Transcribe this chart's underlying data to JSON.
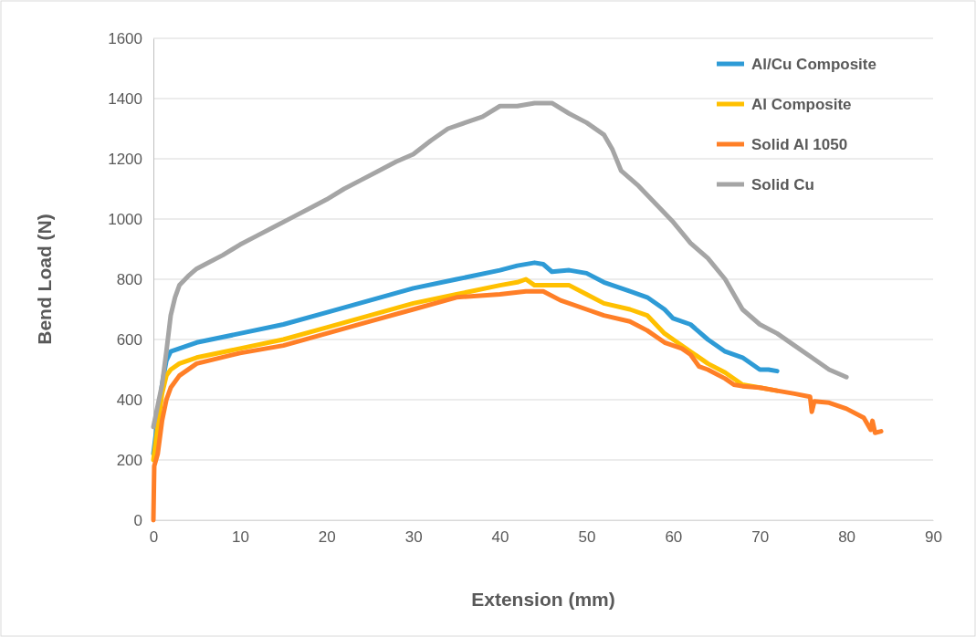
{
  "chart_data": {
    "type": "line",
    "xlabel": "Extension (mm)",
    "ylabel": "Bend Load (N)",
    "xlim": [
      0,
      90
    ],
    "xticks": [
      0,
      10,
      20,
      30,
      40,
      50,
      60,
      70,
      80,
      90
    ],
    "ylim": [
      0,
      1600
    ],
    "yticks": [
      0,
      200,
      400,
      600,
      800,
      1000,
      1200,
      1400,
      1600
    ],
    "grid": "y",
    "legend": "top right",
    "marker": "none",
    "line_style": "solid",
    "series": [
      {
        "name": "Al/Cu Composite",
        "color": "#2e9bd6",
        "x": [
          0,
          0.5,
          1,
          1.5,
          2,
          3,
          5,
          10,
          15,
          20,
          25,
          30,
          35,
          40,
          42,
          44,
          45,
          46,
          48,
          50,
          52,
          55,
          57,
          59,
          60,
          62,
          64,
          66,
          68,
          70,
          71,
          72
        ],
        "values": [
          220,
          null,
          450,
          530,
          560,
          570,
          590,
          620,
          650,
          690,
          730,
          770,
          800,
          830,
          845,
          855,
          850,
          825,
          830,
          820,
          790,
          760,
          740,
          700,
          670,
          650,
          600,
          560,
          540,
          500,
          500,
          495
        ]
      },
      {
        "name": "Al Composite",
        "color": "#ffc000",
        "x": [
          0,
          1,
          1.5,
          2,
          3,
          5,
          10,
          15,
          20,
          25,
          30,
          35,
          40,
          42,
          43,
          44,
          46,
          48,
          50,
          52,
          55,
          57,
          59,
          60,
          62,
          64,
          66,
          68,
          70,
          72
        ],
        "values": [
          200,
          420,
          480,
          500,
          520,
          540,
          570,
          600,
          640,
          680,
          720,
          750,
          780,
          790,
          800,
          780,
          780,
          780,
          750,
          720,
          700,
          680,
          620,
          600,
          560,
          520,
          490,
          450,
          440,
          430
        ]
      },
      {
        "name": "Solid Al 1050",
        "color": "#ff7f27",
        "x": [
          0,
          0.1,
          0.5,
          1,
          1.5,
          2,
          3,
          5,
          10,
          15,
          20,
          25,
          30,
          35,
          40,
          43,
          45,
          47,
          50,
          52,
          55,
          57,
          59,
          61,
          62,
          63,
          64,
          66,
          67,
          68,
          70,
          72,
          74,
          75.8,
          76,
          76.3,
          78,
          80,
          82,
          82.8,
          83,
          83.3,
          84
        ],
        "values": [
          0,
          180,
          220,
          330,
          400,
          440,
          480,
          520,
          555,
          580,
          620,
          660,
          700,
          740,
          750,
          760,
          760,
          730,
          700,
          680,
          660,
          630,
          590,
          570,
          550,
          510,
          500,
          470,
          450,
          445,
          440,
          430,
          420,
          410,
          360,
          395,
          390,
          370,
          340,
          300,
          330,
          290,
          295
        ]
      },
      {
        "name": "Solid Cu",
        "color": "#a5a5a5",
        "x": [
          0,
          0.5,
          1,
          1.5,
          2,
          2.5,
          3,
          4,
          5,
          6,
          8,
          10,
          12,
          14,
          16,
          18,
          20,
          22,
          24,
          26,
          28,
          30,
          32,
          34,
          36,
          38,
          40,
          42,
          44,
          46,
          48,
          50,
          52,
          53,
          54,
          56,
          58,
          60,
          62,
          64,
          66,
          68,
          70,
          72,
          74,
          76,
          78,
          80
        ],
        "values": [
          310,
          380,
          450,
          560,
          680,
          740,
          780,
          810,
          835,
          850,
          880,
          915,
          945,
          975,
          1005,
          1035,
          1065,
          1100,
          1130,
          1160,
          1190,
          1215,
          1260,
          1300,
          1320,
          1340,
          1375,
          1375,
          1385,
          1385,
          1350,
          1320,
          1280,
          1230,
          1160,
          1110,
          1050,
          990,
          920,
          870,
          800,
          700,
          650,
          620,
          580,
          540,
          500,
          475
        ]
      }
    ]
  }
}
